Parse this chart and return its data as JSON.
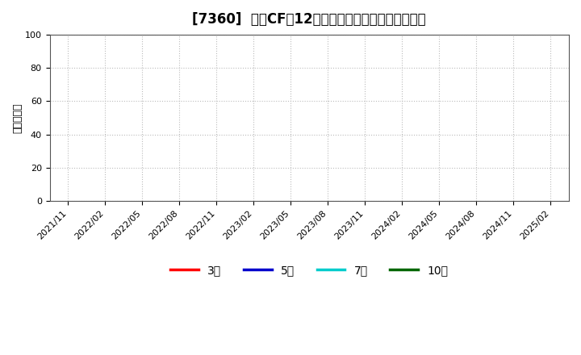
{
  "title": "[7360]  投資CFの12か月移動合計の標準偏差の推移",
  "ylabel": "（百万円）",
  "ylim": [
    0,
    100
  ],
  "yticks": [
    0,
    20,
    40,
    60,
    80,
    100
  ],
  "x_labels": [
    "2021/11",
    "2022/02",
    "2022/05",
    "2022/08",
    "2022/11",
    "2023/02",
    "2023/05",
    "2023/08",
    "2023/11",
    "2024/02",
    "2024/05",
    "2024/08",
    "2024/11",
    "2025/02"
  ],
  "legend_entries": [
    {
      "label": "3年",
      "color": "#ff0000",
      "linestyle": "-"
    },
    {
      "label": "5年",
      "color": "#0000cc",
      "linestyle": "-"
    },
    {
      "label": "7年",
      "color": "#00cccc",
      "linestyle": "-"
    },
    {
      "label": "10年",
      "color": "#006600",
      "linestyle": "-"
    }
  ],
  "background_color": "#ffffff",
  "plot_bg_color": "#ffffff",
  "grid_color": "#bbbbbb",
  "title_fontsize": 12,
  "ylabel_fontsize": 9,
  "tick_fontsize": 8,
  "legend_fontsize": 10
}
